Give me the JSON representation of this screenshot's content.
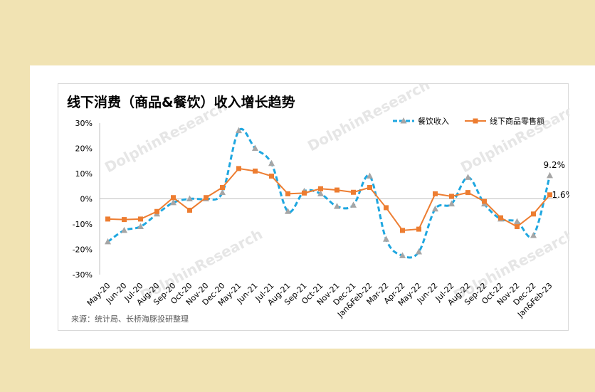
{
  "chart_data": {
    "type": "line",
    "title": "线下消费（商品&餐饮）收入增长趋势",
    "source": "来源：统计局、长桥海豚投研整理",
    "watermark": "DolphinResearch",
    "categories": [
      "May-20",
      "Jun-20",
      "Jul-20",
      "Aug-20",
      "Sep-20",
      "Oct-20",
      "Nov-20",
      "Dec-20",
      "May-21",
      "Jun-21",
      "Jul-21",
      "Aug-21",
      "Sep-21",
      "Oct-21",
      "Nov-21",
      "Dec-21",
      "Jan&Feb-22",
      "Mar-22",
      "Apr-22",
      "May-22",
      "Jun-22",
      "Jul-22",
      "Aug-22",
      "Sep-22",
      "Oct-22",
      "Nov-22",
      "Dec-22",
      "Jan&Feb-23"
    ],
    "ylim": [
      -30,
      30
    ],
    "yticks": [
      "30%",
      "20%",
      "10%",
      "0%",
      "-10%",
      "-20%",
      "-30%"
    ],
    "grid": false,
    "legend_position": "top-right",
    "series": [
      {
        "name": "餐饮收入",
        "color": "#1fa7e0",
        "marker_color": "#a6a6a6",
        "style": "dashed",
        "marker": "triangle",
        "values": [
          -17,
          -12.5,
          -11,
          -6,
          -1.5,
          0,
          0,
          2.5,
          27,
          20,
          14,
          -5,
          3,
          2,
          -3,
          -2.5,
          9,
          -16,
          -22.5,
          -21,
          -4,
          -2,
          8.5,
          -2,
          -8,
          -9,
          -14.5,
          9.2
        ]
      },
      {
        "name": "线下商品零售额",
        "color": "#ed7d31",
        "marker_color": "#ed7d31",
        "style": "solid",
        "marker": "square",
        "values": [
          -8,
          -8.2,
          -8,
          -5,
          0.5,
          -4.5,
          0.5,
          4.5,
          12,
          11,
          9,
          2,
          2.3,
          4,
          3.5,
          2.6,
          4.5,
          -3.5,
          -12.5,
          -12,
          2,
          1,
          2.5,
          -1,
          -7.5,
          -11,
          -6,
          1.6
        ]
      }
    ],
    "data_labels": [
      {
        "series": "餐饮收入",
        "index": 27,
        "text": "9.2%"
      },
      {
        "series": "线下商品零售额",
        "index": 27,
        "text": "1.6%"
      }
    ]
  }
}
